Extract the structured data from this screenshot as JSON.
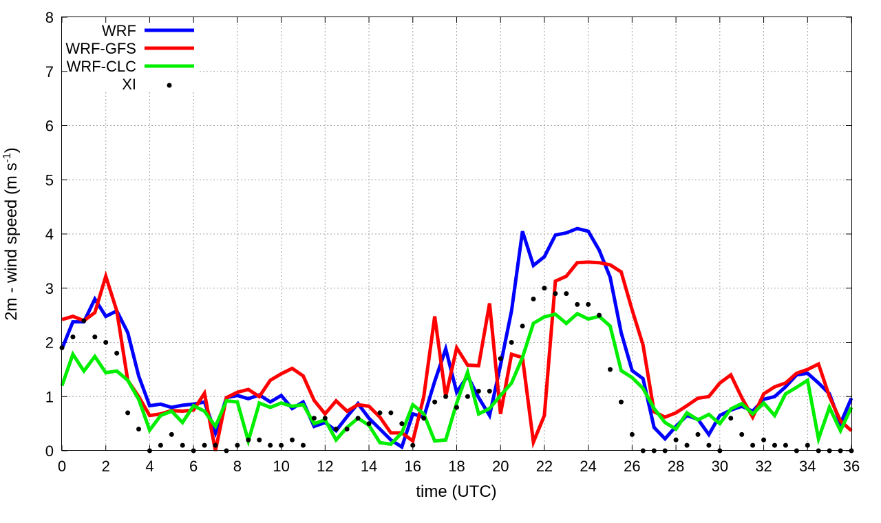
{
  "chart_data": {
    "type": "line",
    "xlabel": "time (UTC)",
    "ylabel": {
      "prefix": "2m - wind speed  (m s",
      "superscript": "-1",
      "suffix": ")"
    },
    "xlim": [
      0,
      36
    ],
    "ylim": [
      0,
      8
    ],
    "xticks": [
      "0",
      "2",
      "4",
      "6",
      "8",
      "10",
      "12",
      "14",
      "16",
      "18",
      "20",
      "22",
      "24",
      "26",
      "28",
      "30",
      "32",
      "34",
      "36"
    ],
    "yticks": [
      "0",
      "1",
      "2",
      "3",
      "4",
      "5",
      "6",
      "7",
      "8"
    ],
    "grid": true,
    "legend_position": "top-left",
    "x": [
      0,
      0.5,
      1,
      1.5,
      2,
      2.5,
      3,
      3.5,
      4,
      4.5,
      5,
      5.5,
      6,
      6.5,
      7,
      7.5,
      8,
      8.5,
      9,
      9.5,
      10,
      10.5,
      11,
      11.5,
      12,
      12.5,
      13,
      13.5,
      14,
      14.5,
      15,
      15.5,
      16,
      16.5,
      17,
      17.5,
      18,
      18.5,
      19,
      19.5,
      20,
      20.5,
      21,
      21.5,
      22,
      22.5,
      23,
      23.5,
      24,
      24.5,
      25,
      25.5,
      26,
      26.5,
      27,
      27.5,
      28,
      28.5,
      29,
      29.5,
      30,
      30.5,
      31,
      31.5,
      32,
      32.5,
      33,
      33.5,
      34,
      34.5,
      35,
      35.5,
      36
    ],
    "series": [
      {
        "name": "WRF",
        "color": "#0000ff",
        "style": "line",
        "values": [
          1.88,
          2.38,
          2.38,
          2.8,
          2.48,
          2.58,
          2.18,
          1.38,
          0.83,
          0.86,
          0.8,
          0.84,
          0.86,
          0.9,
          0.33,
          0.98,
          1.02,
          0.96,
          1.03,
          0.9,
          1.02,
          0.78,
          0.9,
          0.45,
          0.52,
          0.37,
          0.63,
          0.87,
          0.6,
          0.4,
          0.2,
          0.07,
          0.68,
          0.62,
          1.28,
          1.88,
          1.08,
          1.38,
          0.98,
          0.65,
          1.58,
          2.58,
          4.05,
          3.42,
          3.58,
          3.98,
          4.02,
          4.1,
          4.05,
          3.7,
          3.2,
          2.18,
          1.48,
          1.33,
          0.43,
          0.22,
          0.45,
          0.65,
          0.58,
          0.3,
          0.65,
          0.75,
          0.82,
          0.73,
          0.95,
          1.0,
          1.18,
          1.4,
          1.43,
          1.25,
          1.05,
          0.5,
          0.97
        ]
      },
      {
        "name": "WRF-GFS",
        "color": "#ff0000",
        "style": "line",
        "values": [
          2.42,
          2.48,
          2.4,
          2.55,
          3.22,
          2.58,
          1.3,
          1.0,
          0.65,
          0.68,
          0.74,
          0.73,
          0.75,
          1.06,
          0.0,
          0.98,
          1.08,
          1.13,
          1.0,
          1.3,
          1.42,
          1.52,
          1.38,
          0.93,
          0.68,
          0.92,
          0.73,
          0.85,
          0.82,
          0.62,
          0.33,
          0.33,
          0.18,
          1.0,
          2.48,
          1.0,
          1.9,
          1.58,
          1.57,
          2.72,
          0.68,
          1.78,
          1.72,
          0.16,
          0.65,
          3.13,
          3.22,
          3.47,
          3.48,
          3.47,
          3.43,
          3.3,
          2.6,
          1.95,
          0.72,
          0.62,
          0.7,
          0.83,
          0.97,
          1.0,
          1.25,
          1.4,
          0.98,
          0.62,
          1.05,
          1.18,
          1.25,
          1.43,
          1.5,
          1.6,
          1.0,
          0.55,
          0.37
        ]
      },
      {
        "name": "WRF-CLC",
        "color": "#00ee00",
        "style": "line",
        "values": [
          1.2,
          1.78,
          1.47,
          1.74,
          1.44,
          1.47,
          1.3,
          0.95,
          0.38,
          0.65,
          0.73,
          0.52,
          0.83,
          0.73,
          0.45,
          0.92,
          0.9,
          0.18,
          0.88,
          0.8,
          0.88,
          0.82,
          0.85,
          0.5,
          0.57,
          0.2,
          0.43,
          0.6,
          0.47,
          0.15,
          0.12,
          0.33,
          0.85,
          0.68,
          0.18,
          0.2,
          0.88,
          1.45,
          0.68,
          0.78,
          1.02,
          1.25,
          1.72,
          2.35,
          2.47,
          2.52,
          2.35,
          2.53,
          2.43,
          2.48,
          2.3,
          1.48,
          1.35,
          1.15,
          0.78,
          0.52,
          0.4,
          0.7,
          0.57,
          0.67,
          0.5,
          0.77,
          0.87,
          0.68,
          0.88,
          0.65,
          1.05,
          1.17,
          1.3,
          0.22,
          0.8,
          0.37,
          0.8
        ]
      },
      {
        "name": "XI",
        "color": "#000000",
        "style": "points",
        "values": [
          1.9,
          2.1,
          2.4,
          2.1,
          2.0,
          1.8,
          0.7,
          0.4,
          0.0,
          0.1,
          0.3,
          0.1,
          0.0,
          0.1,
          0.1,
          0.0,
          0.1,
          0.2,
          0.2,
          0.1,
          0.1,
          0.2,
          0.1,
          0.6,
          0.6,
          0.4,
          0.4,
          0.6,
          0.5,
          0.7,
          0.7,
          0.5,
          0.1,
          0.6,
          0.9,
          1.0,
          0.8,
          1.0,
          1.1,
          1.1,
          1.7,
          2.0,
          2.3,
          2.8,
          3.0,
          2.9,
          2.9,
          2.7,
          2.7,
          2.5,
          1.5,
          0.9,
          0.3,
          0.0,
          0.0,
          0.0,
          0.2,
          0.1,
          0.3,
          0.1,
          0.0,
          0.6,
          0.3,
          0.1,
          0.2,
          0.1,
          0.1,
          0.0,
          0.1,
          0.0,
          0.0,
          0.0,
          0.0
        ]
      }
    ]
  }
}
